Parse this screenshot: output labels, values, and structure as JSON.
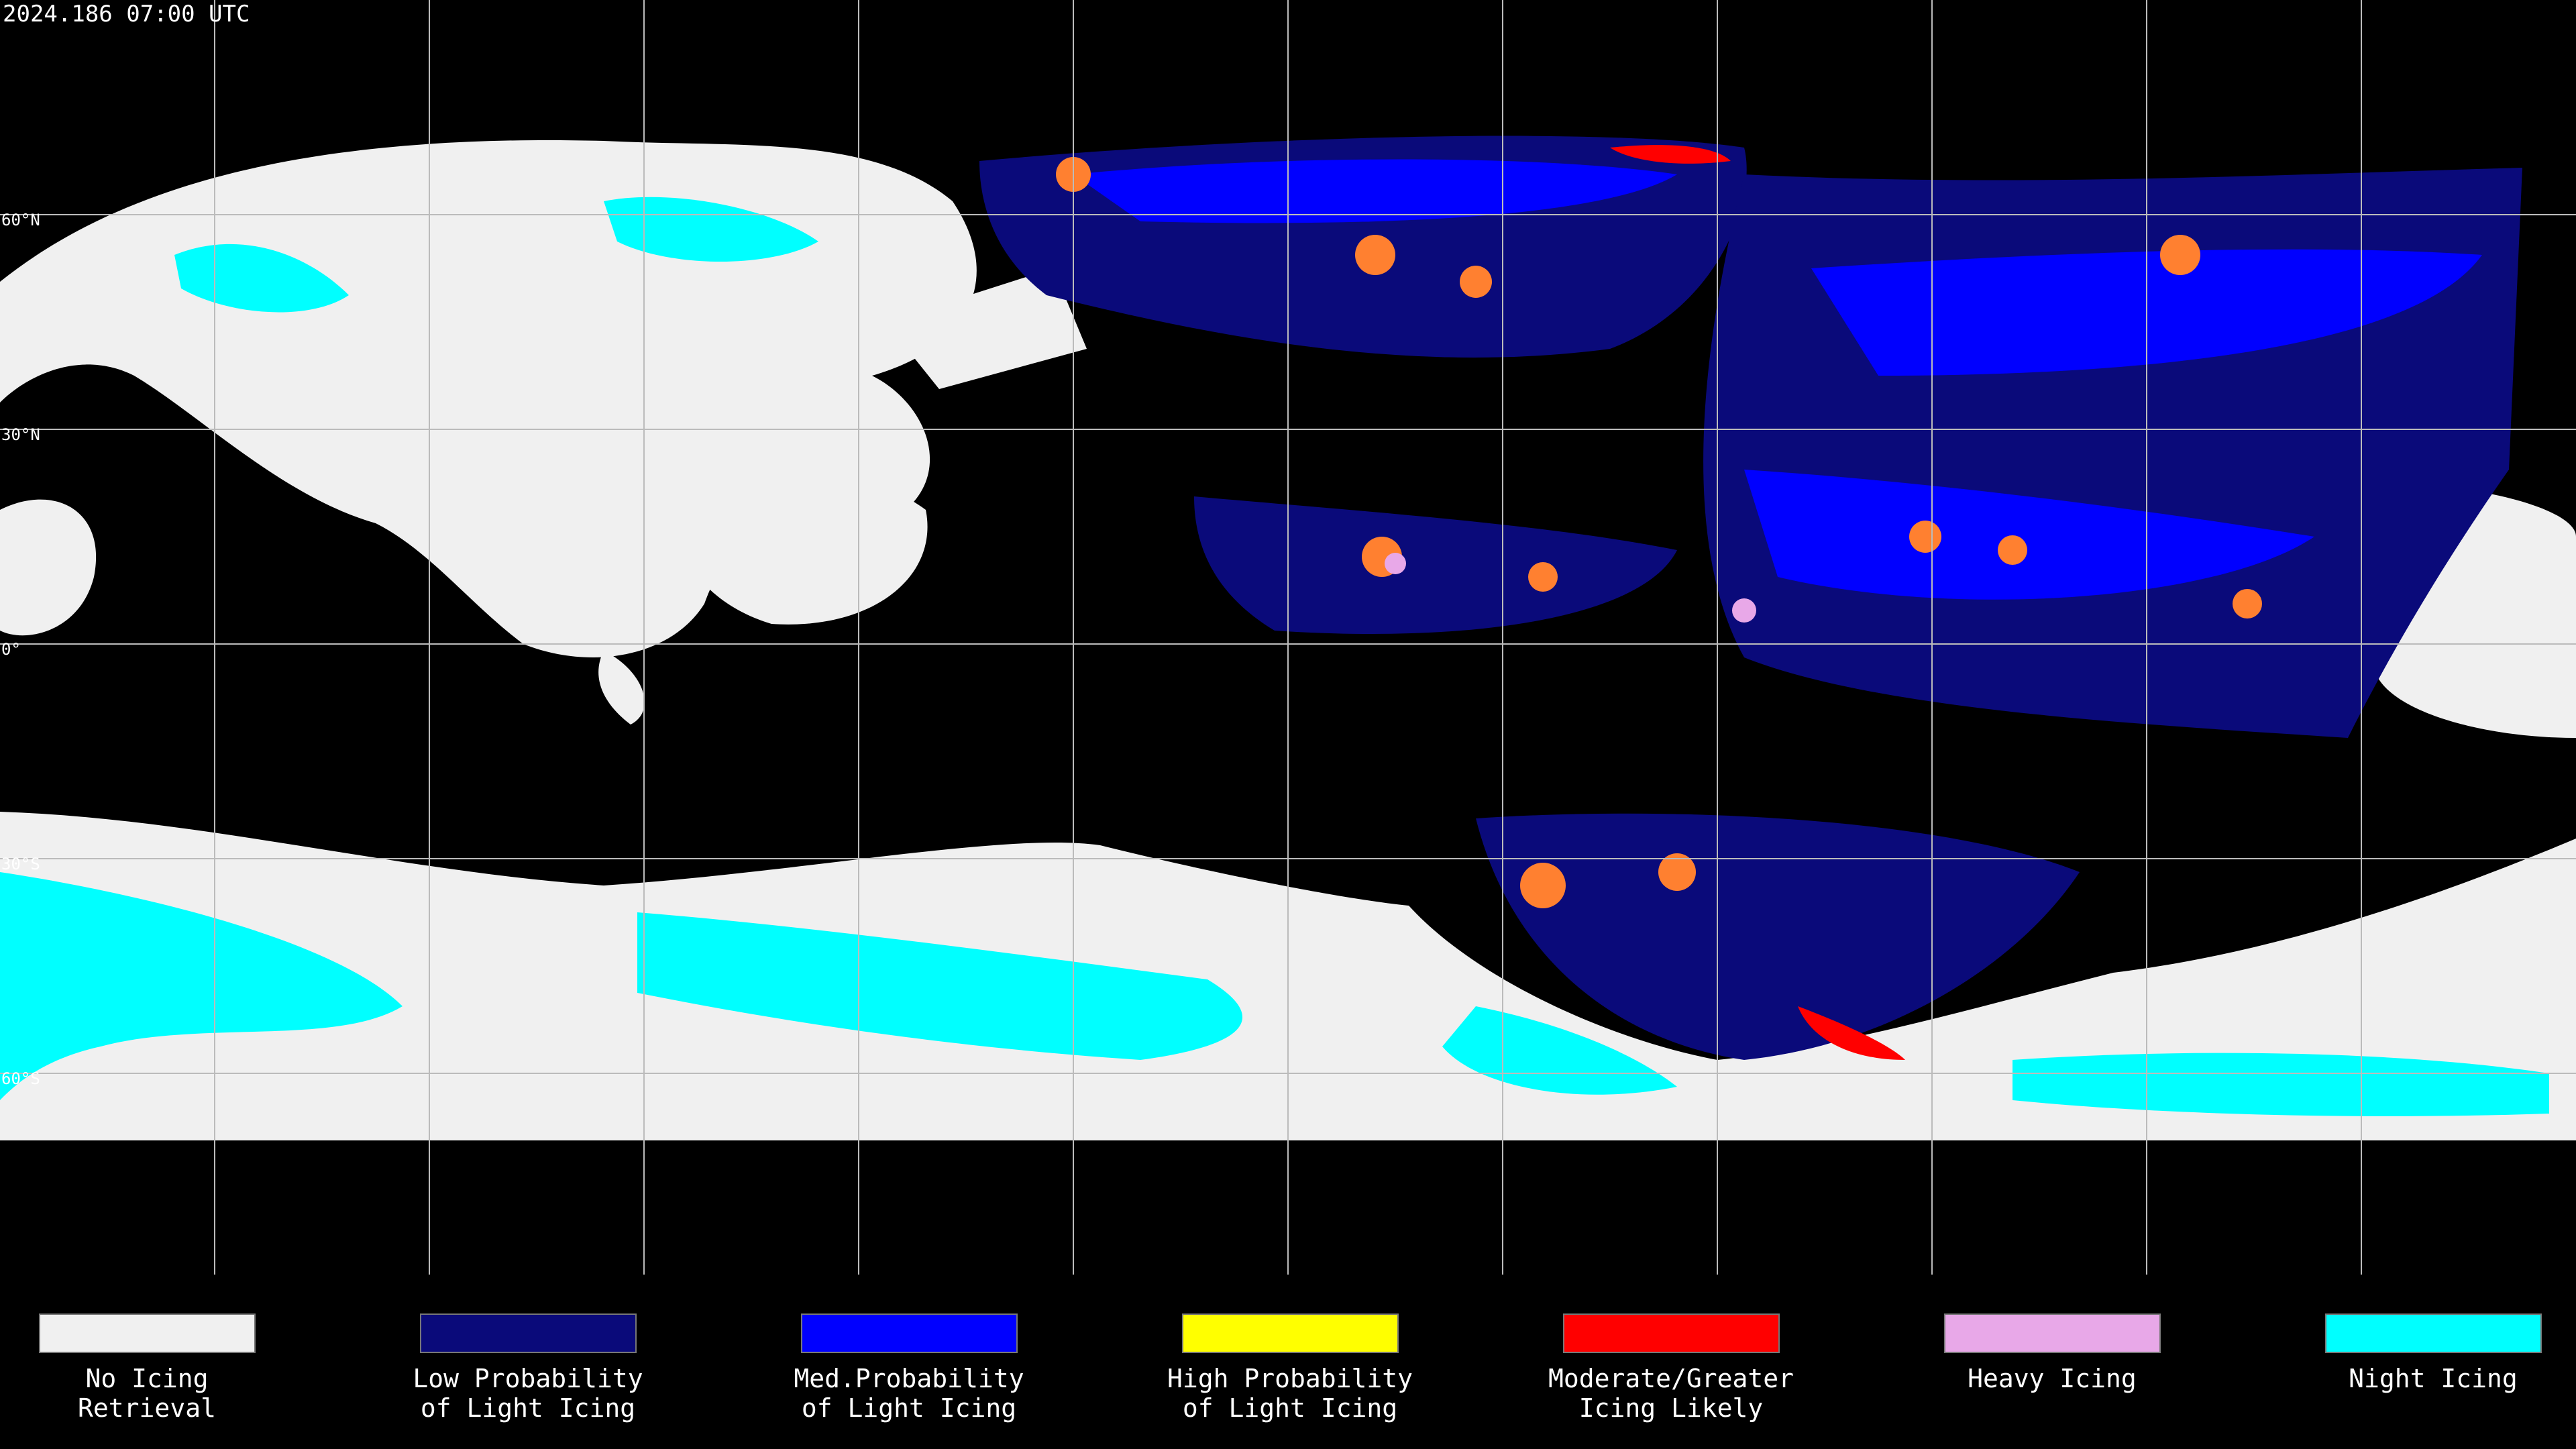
{
  "title": "2024.186 07:00 UTC",
  "grid_labels": [
    "60°N",
    "30°N",
    "0°",
    "30°S",
    "60°S"
  ],
  "legend": [
    {
      "color": "#f0f0f0",
      "label": [
        "No Icing",
        "Retrieval"
      ]
    },
    {
      "color": "#0a0a7a",
      "label": [
        "Low Probability",
        "of Light Icing"
      ]
    },
    {
      "color": "#0000ff",
      "label": [
        "Med.Probability",
        "of Light Icing"
      ]
    },
    {
      "color": "#ffff00",
      "label": [
        "High Probability",
        "of Light Icing"
      ]
    },
    {
      "color": "#ff0000",
      "label": [
        "Moderate/Greater",
        "Icing Likely"
      ]
    },
    {
      "color": "#e8a8e8",
      "label": [
        "Heavy Icing"
      ]
    },
    {
      "color": "#00ffff",
      "label": [
        "Night Icing"
      ]
    }
  ]
}
